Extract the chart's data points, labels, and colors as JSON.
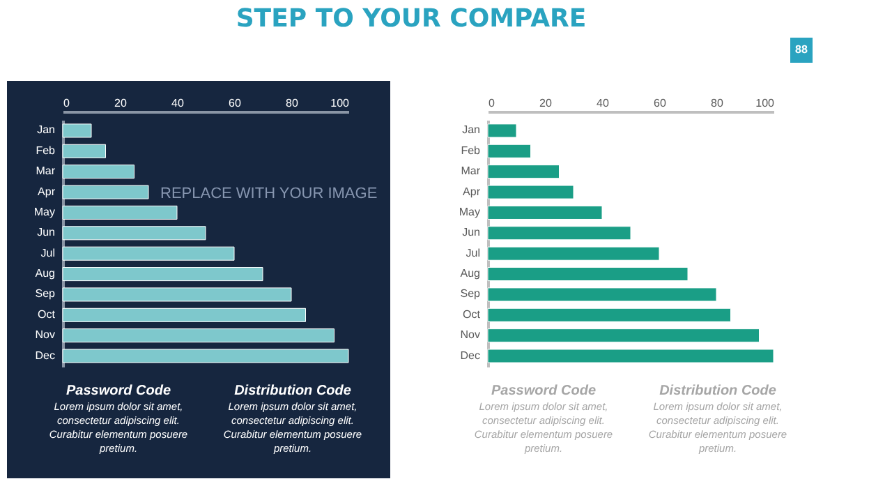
{
  "chart_data": [
    {
      "type": "bar",
      "orientation": "horizontal",
      "title": "STEP TO YOUR COMPARE",
      "categories": [
        "Jan",
        "Feb",
        "Mar",
        "Apr",
        "May",
        "Jun",
        "Jul",
        "Aug",
        "Sep",
        "Oct",
        "Nov",
        "Dec"
      ],
      "values": [
        10,
        15,
        25,
        30,
        40,
        50,
        60,
        70,
        80,
        85,
        95,
        100
      ],
      "color": "#7ec8cc",
      "xlim": [
        0,
        100
      ],
      "xticks": [
        0,
        20,
        40,
        60,
        80,
        100
      ],
      "grid": false,
      "annotations": [
        "Password  Code",
        "Lorem ipsum dolor sit amet, consectetur adipiscing elit. Curabitur elementum posuere pretium.",
        "Distribution Code",
        "Lorem ipsum dolor sit amet, consectetur adipiscing elit. Curabitur elementum posuere pretium.",
        "REPLACE WITH YOUR IMAGE"
      ]
    },
    {
      "type": "bar",
      "orientation": "horizontal",
      "categories": [
        "Jan",
        "Feb",
        "Mar",
        "Apr",
        "May",
        "Jun",
        "Jul",
        "Aug",
        "Sep",
        "Oct",
        "Nov",
        "Dec"
      ],
      "values": [
        10,
        15,
        25,
        30,
        40,
        50,
        60,
        70,
        80,
        85,
        95,
        100
      ],
      "color": "#1a9e86",
      "xlim": [
        0,
        100
      ],
      "xticks": [
        0,
        20,
        40,
        60,
        80,
        100
      ],
      "grid": false,
      "annotations": [
        "Password  Code",
        "Lorem ipsum dolor sit amet, consectetur adipiscing elit. Curabitur elementum posuere pretium.",
        "Distribution Code",
        "Lorem ipsum dolor sit amet, consectetur adipiscing elit. Curabitur elementum posuere pretium.",
        "88"
      ]
    }
  ]
}
